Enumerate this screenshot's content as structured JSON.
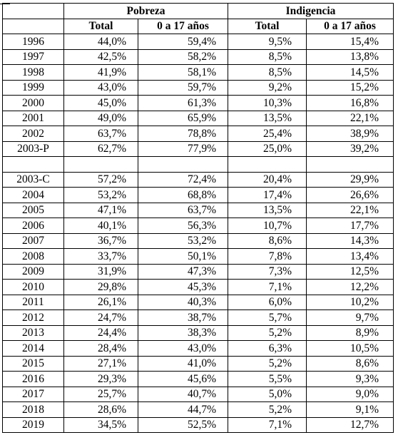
{
  "table": {
    "group_headers": [
      "Pobreza",
      "Indigencia"
    ],
    "sub_headers": [
      "Total",
      "0 a 17 años",
      "Total",
      "0 a 17 años"
    ],
    "rows_block1": [
      {
        "year": "1996",
        "values": [
          "44,0%",
          "59,4%",
          "9,5%",
          "15,4%"
        ]
      },
      {
        "year": "1997",
        "values": [
          "42,5%",
          "58,2%",
          "8,5%",
          "13,8%"
        ]
      },
      {
        "year": "1998",
        "values": [
          "41,9%",
          "58,1%",
          "8,5%",
          "14,5%"
        ]
      },
      {
        "year": "1999",
        "values": [
          "43,0%",
          "59,7%",
          "9,2%",
          "15,2%"
        ]
      },
      {
        "year": "2000",
        "values": [
          "45,0%",
          "61,3%",
          "10,3%",
          "16,8%"
        ]
      },
      {
        "year": "2001",
        "values": [
          "49,0%",
          "65,9%",
          "13,5%",
          "22,1%"
        ]
      },
      {
        "year": "2002",
        "values": [
          "63,7%",
          "78,8%",
          "25,4%",
          "38,9%"
        ]
      },
      {
        "year": "2003-P",
        "values": [
          "62,7%",
          "77,9%",
          "25,0%",
          "39,2%"
        ]
      }
    ],
    "rows_block2": [
      {
        "year": "2003-C",
        "values": [
          "57,2%",
          "72,4%",
          "20,4%",
          "29,9%"
        ]
      },
      {
        "year": "2004",
        "values": [
          "53,2%",
          "68,8%",
          "17,4%",
          "26,6%"
        ]
      },
      {
        "year": "2005",
        "values": [
          "47,1%",
          "63,7%",
          "13,5%",
          "22,1%"
        ]
      },
      {
        "year": "2006",
        "values": [
          "40,1%",
          "56,3%",
          "10,7%",
          "17,7%"
        ]
      },
      {
        "year": "2007",
        "values": [
          "36,7%",
          "53,2%",
          "8,6%",
          "14,3%"
        ]
      },
      {
        "year": "2008",
        "values": [
          "33,7%",
          "50,1%",
          "7,8%",
          "13,4%"
        ]
      },
      {
        "year": "2009",
        "values": [
          "31,9%",
          "47,3%",
          "7,3%",
          "12,5%"
        ]
      },
      {
        "year": "2010",
        "values": [
          "29,8%",
          "45,3%",
          "7,1%",
          "12,2%"
        ]
      },
      {
        "year": "2011",
        "values": [
          "26,1%",
          "40,3%",
          "6,0%",
          "10,2%"
        ]
      },
      {
        "year": "2012",
        "values": [
          "24,7%",
          "38,7%",
          "5,7%",
          "9,7%"
        ]
      },
      {
        "year": "2013",
        "values": [
          "24,4%",
          "38,3%",
          "5,2%",
          "8,9%"
        ]
      },
      {
        "year": "2014",
        "values": [
          "28,4%",
          "43,0%",
          "6,3%",
          "10,5%"
        ]
      },
      {
        "year": "2015",
        "values": [
          "27,1%",
          "41,0%",
          "5,2%",
          "8,6%"
        ]
      },
      {
        "year": "2016",
        "values": [
          "29,3%",
          "45,6%",
          "5,5%",
          "9,3%"
        ]
      },
      {
        "year": "2017",
        "values": [
          "25,7%",
          "40,7%",
          "5,0%",
          "9,0%"
        ]
      },
      {
        "year": "2018",
        "values": [
          "28,6%",
          "44,7%",
          "5,2%",
          "9,1%"
        ]
      },
      {
        "year": "2019",
        "values": [
          "34,5%",
          "52,5%",
          "7,1%",
          "12,7%"
        ]
      }
    ]
  }
}
